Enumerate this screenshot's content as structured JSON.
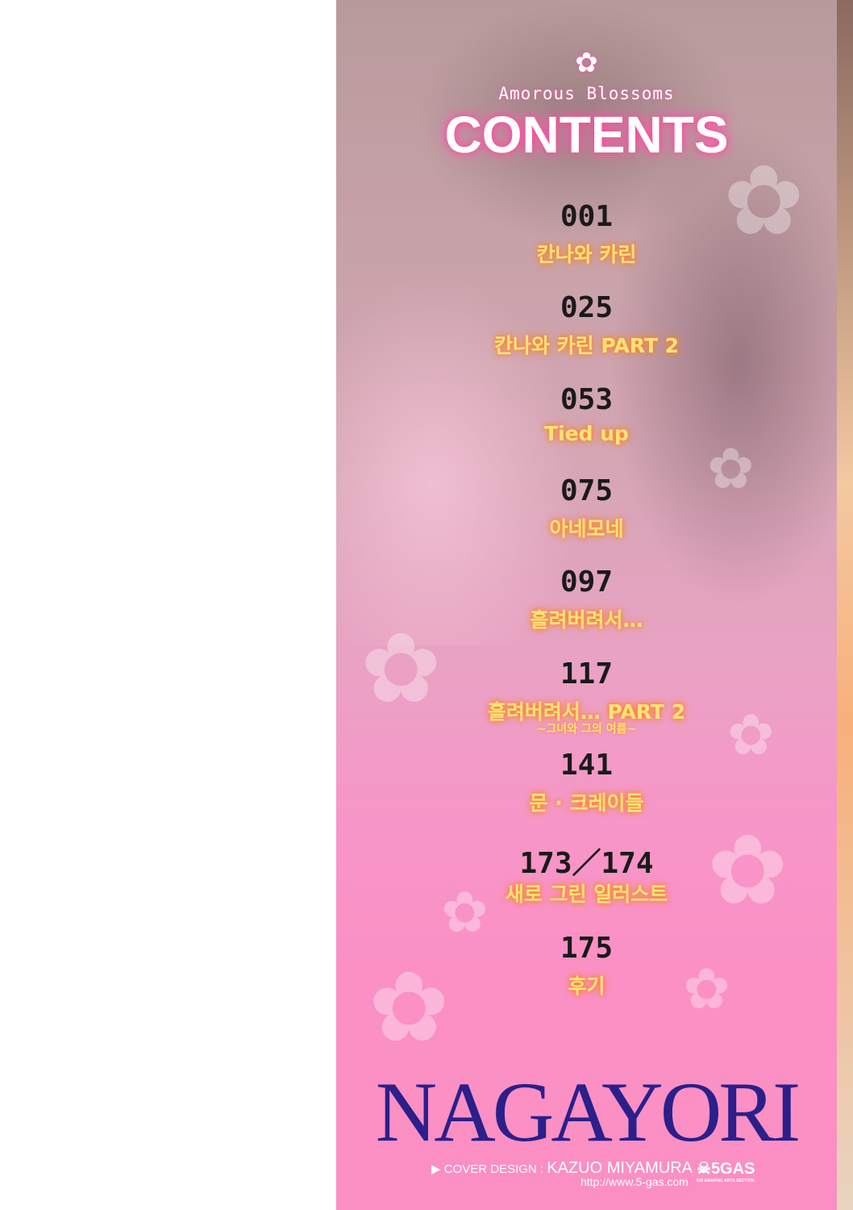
{
  "header": {
    "subtitle": "Amorous Blossoms",
    "title": "CONTENTS",
    "flower_icon": "flower-icon"
  },
  "entries": [
    {
      "page": "001",
      "title": "칸나와 카린"
    },
    {
      "page": "025",
      "title": "칸나와 카린 PART 2"
    },
    {
      "page": "053",
      "title": "Tied up"
    },
    {
      "page": "075",
      "title": "아네모네"
    },
    {
      "page": "097",
      "title": "흘려버려서…"
    },
    {
      "page": "117",
      "title": "흘려버려서… PART 2",
      "subtitle": "~그녀와 그의 여름~"
    },
    {
      "page": "141",
      "title": "문 · 크레이들"
    },
    {
      "page": "173／174",
      "title": "새로 그린 일러스트"
    },
    {
      "page": "175",
      "title": "후기"
    }
  ],
  "footer": {
    "author": "NAGAYORI",
    "credit_label": "COVER DESIGN :",
    "credit_name": "KAZUO MIYAMURA",
    "url": "http://www.5-gas.com",
    "logo": "5GAS",
    "logo_sub": "510 GRAPHIC ARTS SECTION"
  },
  "colors": {
    "pink": "#fb90c5",
    "title_yellow": "#ffe27a",
    "author_blue": "#2b1f8a"
  }
}
